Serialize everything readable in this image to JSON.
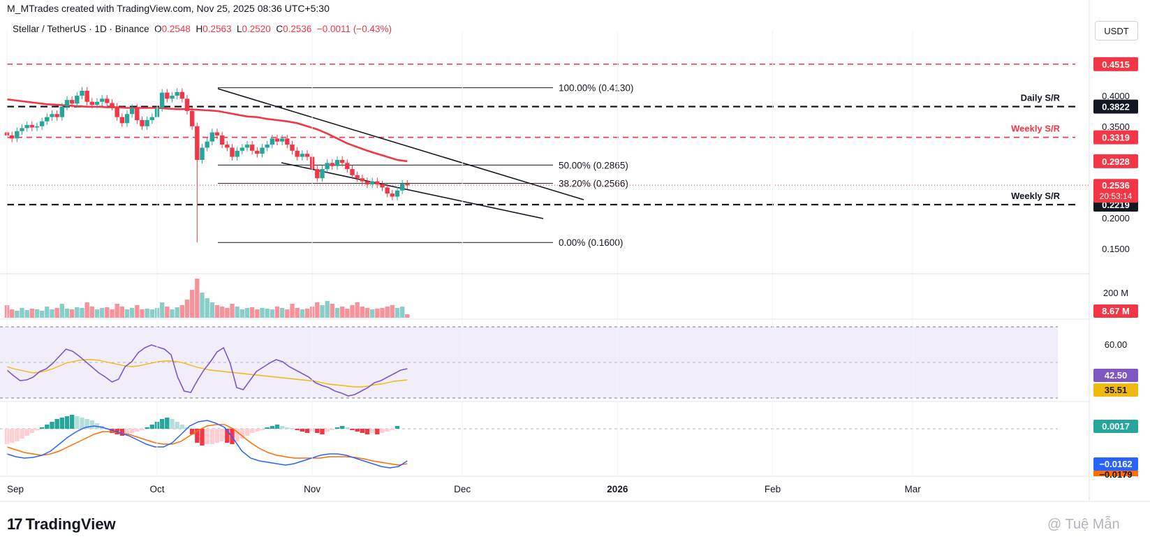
{
  "attribution": "M_MTrades created with TradingView.com, Nov 25, 2025 08:36 UTC+5:30",
  "header": {
    "symbol": "Stellar / TetherUS · 1D · Binance",
    "o_label": "O",
    "o_value": "0.2548",
    "h_label": "H",
    "h_value": "0.2563",
    "l_label": "L",
    "l_value": "0.2520",
    "c_label": "C",
    "c_value": "0.2536",
    "change": "−0.0011 (−0.43%)"
  },
  "currency": "USDT",
  "brand": "TradingView",
  "watermark": "@ Tuệ Mẫn",
  "colors": {
    "up": "#26a69a",
    "down": "#f23645",
    "ma": "#f23645",
    "rsi": "#7e57c2",
    "rsi_ma": "#f0b90b",
    "macd": "#2962ff",
    "signal": "#ff6d00"
  },
  "chart_data": {
    "type": "candlestick",
    "price_axis": {
      "ticks": [
        "0.4000",
        "0.3500",
        "0.2000",
        "0.1500"
      ],
      "range": [
        0.13,
        0.47
      ]
    },
    "x_labels": [
      "Sep",
      "Oct",
      "Nov",
      "Dec",
      "2026",
      "Feb",
      "Mar"
    ],
    "x_range_days": [
      0,
      210
    ],
    "x_label_days": [
      0,
      30,
      61,
      91,
      122,
      153,
      181
    ],
    "candles": [
      [
        0.34,
        0.335
      ],
      [
        0.335,
        0.33
      ],
      [
        0.33,
        0.342
      ],
      [
        0.342,
        0.347
      ],
      [
        0.347,
        0.352
      ],
      [
        0.352,
        0.348
      ],
      [
        0.348,
        0.35
      ],
      [
        0.35,
        0.358
      ],
      [
        0.358,
        0.365
      ],
      [
        0.365,
        0.37
      ],
      [
        0.37,
        0.365
      ],
      [
        0.365,
        0.382
      ],
      [
        0.382,
        0.393
      ],
      [
        0.393,
        0.387
      ],
      [
        0.387,
        0.4
      ],
      [
        0.4,
        0.408
      ],
      [
        0.408,
        0.39
      ],
      [
        0.39,
        0.385
      ],
      [
        0.385,
        0.39
      ],
      [
        0.39,
        0.395
      ],
      [
        0.395,
        0.388
      ],
      [
        0.388,
        0.382
      ],
      [
        0.382,
        0.365
      ],
      [
        0.365,
        0.355
      ],
      [
        0.355,
        0.37
      ],
      [
        0.37,
        0.38
      ],
      [
        0.38,
        0.36
      ],
      [
        0.36,
        0.35
      ],
      [
        0.35,
        0.36
      ],
      [
        0.36,
        0.365
      ],
      [
        0.365,
        0.38
      ],
      [
        0.38,
        0.405
      ],
      [
        0.405,
        0.395
      ],
      [
        0.395,
        0.4
      ],
      [
        0.4,
        0.406
      ],
      [
        0.406,
        0.395
      ],
      [
        0.395,
        0.375
      ],
      [
        0.375,
        0.35
      ],
      [
        0.35,
        0.295
      ],
      [
        0.295,
        0.315
      ],
      [
        0.315,
        0.325
      ],
      [
        0.325,
        0.34
      ],
      [
        0.34,
        0.335
      ],
      [
        0.335,
        0.32
      ],
      [
        0.32,
        0.315
      ],
      [
        0.315,
        0.3
      ],
      [
        0.3,
        0.31
      ],
      [
        0.31,
        0.315
      ],
      [
        0.315,
        0.32
      ],
      [
        0.32,
        0.31
      ],
      [
        0.31,
        0.305
      ],
      [
        0.305,
        0.315
      ],
      [
        0.315,
        0.32
      ],
      [
        0.32,
        0.33
      ],
      [
        0.33,
        0.325
      ],
      [
        0.325,
        0.33
      ],
      [
        0.33,
        0.32
      ],
      [
        0.32,
        0.31
      ],
      [
        0.31,
        0.3
      ],
      [
        0.3,
        0.305
      ],
      [
        0.305,
        0.3
      ],
      [
        0.3,
        0.28
      ],
      [
        0.28,
        0.265
      ],
      [
        0.265,
        0.28
      ],
      [
        0.28,
        0.29
      ],
      [
        0.29,
        0.285
      ],
      [
        0.285,
        0.295
      ],
      [
        0.295,
        0.29
      ],
      [
        0.29,
        0.28
      ],
      [
        0.28,
        0.27
      ],
      [
        0.27,
        0.265
      ],
      [
        0.265,
        0.26
      ],
      [
        0.26,
        0.255
      ],
      [
        0.255,
        0.26
      ],
      [
        0.26,
        0.255
      ],
      [
        0.255,
        0.25
      ],
      [
        0.25,
        0.24
      ],
      [
        0.24,
        0.235
      ],
      [
        0.235,
        0.245
      ],
      [
        0.245,
        0.256
      ],
      [
        0.256,
        0.2536
      ]
    ],
    "ma": {
      "label_value": "0.2928",
      "values": [
        0.394,
        0.392,
        0.39,
        0.388,
        0.386,
        0.385,
        0.384,
        0.383,
        0.382,
        0.382,
        0.381,
        0.381,
        0.38,
        0.38,
        0.38,
        0.38,
        0.379,
        0.378,
        0.378,
        0.377,
        0.376,
        0.375,
        0.372,
        0.369,
        0.366,
        0.365,
        0.362,
        0.36,
        0.358,
        0.355,
        0.35,
        0.345,
        0.338,
        0.33,
        0.322,
        0.316,
        0.31,
        0.305,
        0.3,
        0.295,
        0.2928
      ]
    },
    "levels": [
      {
        "value": 0.4515,
        "label": "0.4515",
        "style": "red-dash",
        "tag": ""
      },
      {
        "value": 0.3822,
        "label": "0.3822",
        "style": "black-dash",
        "tag": "Daily S/R"
      },
      {
        "value": 0.3319,
        "label": "0.3319",
        "style": "red-dash",
        "tag": "Weekly S/R"
      },
      {
        "value": 0.2219,
        "label": "0.2219",
        "style": "black-dash",
        "tag": "Weekly S/R"
      }
    ],
    "fib": [
      {
        "label": "100.00% (0.4130)",
        "value": 0.413
      },
      {
        "label": "50.00% (0.2865)",
        "value": 0.2865
      },
      {
        "label": "38.20% (0.2566)",
        "value": 0.2566
      },
      {
        "label": "0.00% (0.1600)",
        "value": 0.16
      }
    ],
    "last_price": {
      "value": "0.2536",
      "countdown": "20:53:14"
    },
    "volume": {
      "tick": "200 M",
      "last": "8.67 M"
    },
    "rsi": {
      "tick": "60.00",
      "value": "42.50",
      "ma_value": "35.51"
    },
    "macd": {
      "hist": "0.0017",
      "macd": "−0.0162",
      "signal": "−0.0179"
    }
  }
}
